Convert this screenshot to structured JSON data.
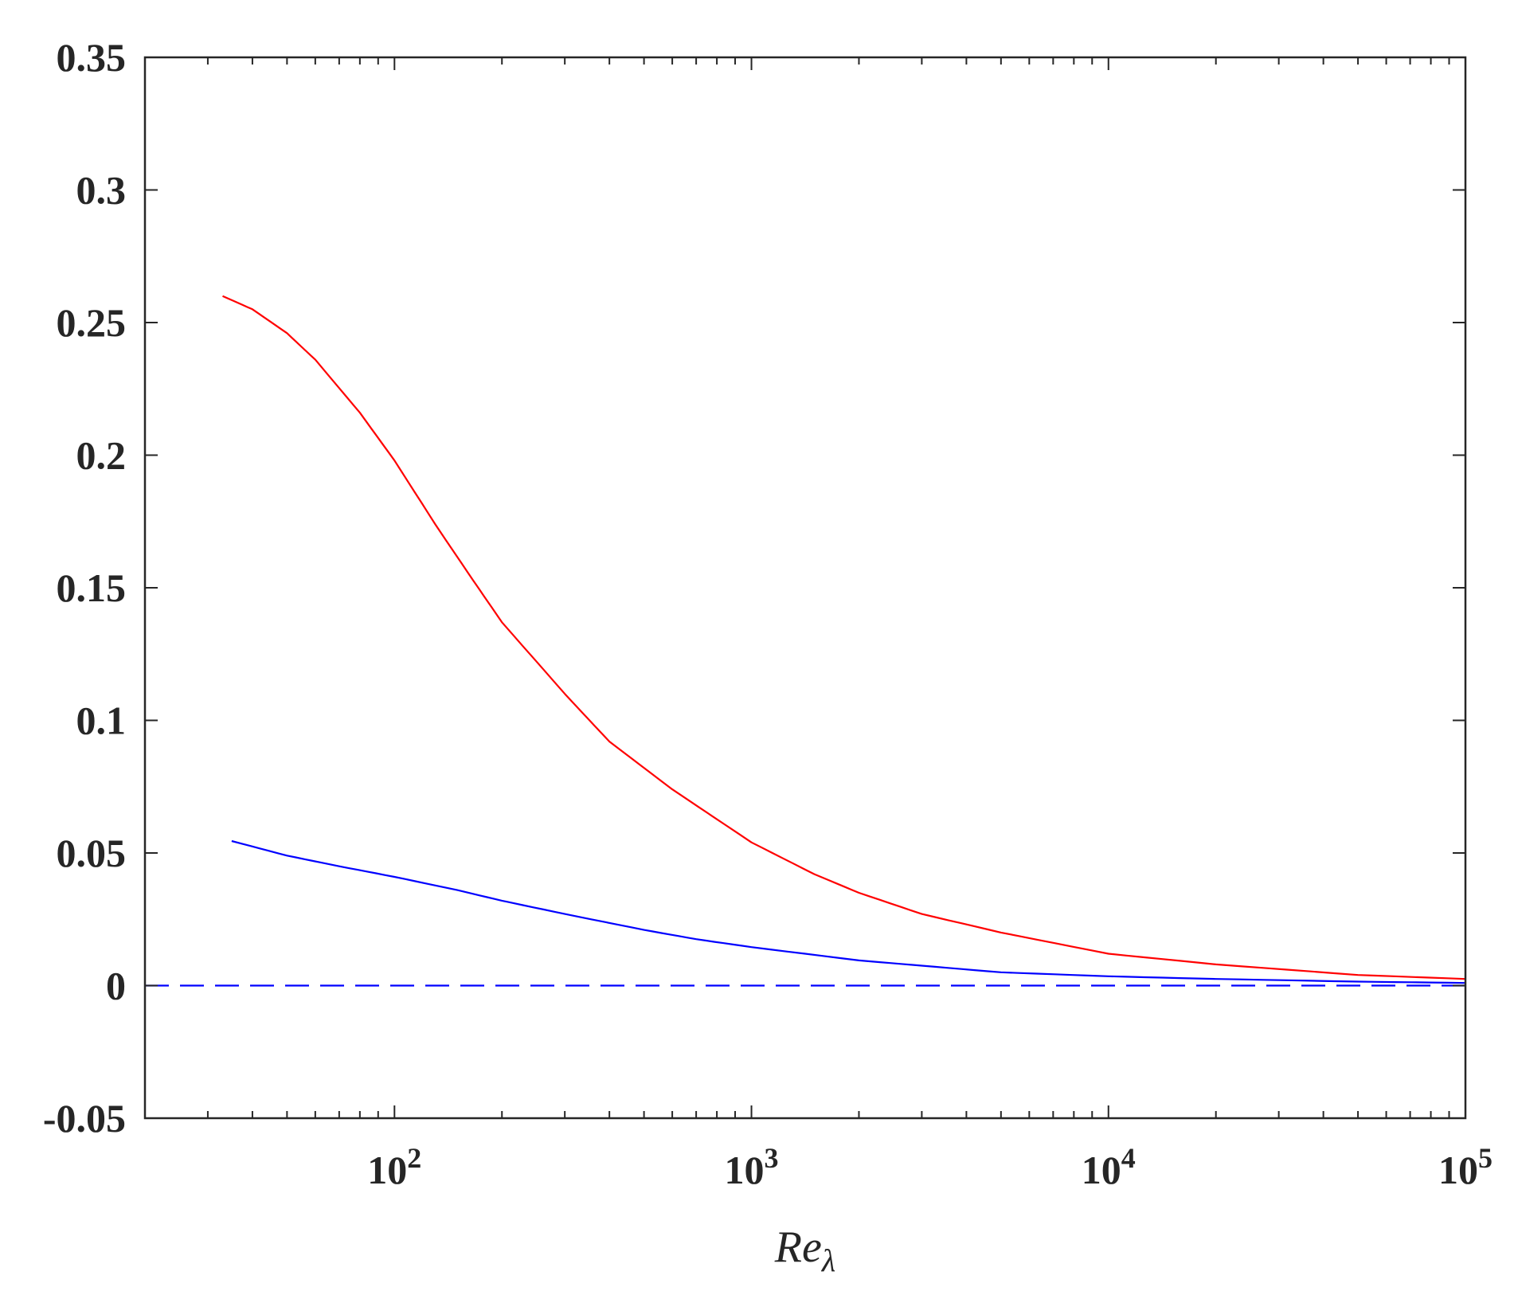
{
  "chart_data": {
    "type": "line",
    "title": "",
    "xlabel": "Re",
    "xlabel_subscript": "λ",
    "ylabel": "",
    "xscale": "log",
    "xlim": [
      20,
      100000
    ],
    "ylim": [
      -0.05,
      0.35
    ],
    "grid": false,
    "yticks": [
      {
        "value": -0.05,
        "label": "-0.05"
      },
      {
        "value": 0,
        "label": "0"
      },
      {
        "value": 0.05,
        "label": "0.05"
      },
      {
        "value": 0.1,
        "label": "0.1"
      },
      {
        "value": 0.15,
        "label": "0.15"
      },
      {
        "value": 0.2,
        "label": "0.2"
      },
      {
        "value": 0.25,
        "label": "0.25"
      },
      {
        "value": 0.3,
        "label": "0.3"
      },
      {
        "value": 0.35,
        "label": "0.35"
      }
    ],
    "xticks": [
      {
        "value": 100,
        "base": "10",
        "exp": "2"
      },
      {
        "value": 1000,
        "base": "10",
        "exp": "3"
      },
      {
        "value": 10000,
        "base": "10",
        "exp": "4"
      },
      {
        "value": 100000,
        "base": "10",
        "exp": "5"
      }
    ],
    "series": [
      {
        "color": "#ff0000",
        "style": "solid",
        "x": [
          33,
          40,
          50,
          60,
          80,
          100,
          130,
          160,
          200,
          300,
          400,
          600,
          1000,
          1500,
          2000,
          3000,
          5000,
          10000,
          20000,
          50000,
          100000
        ],
        "y": [
          0.26,
          0.255,
          0.246,
          0.236,
          0.216,
          0.198,
          0.174,
          0.156,
          0.137,
          0.11,
          0.092,
          0.074,
          0.054,
          0.042,
          0.035,
          0.027,
          0.02,
          0.012,
          0.008,
          0.004,
          0.0025
        ]
      },
      {
        "color": "#0000ff",
        "style": "solid",
        "x": [
          35,
          50,
          70,
          100,
          150,
          200,
          300,
          500,
          700,
          1000,
          2000,
          3000,
          5000,
          10000,
          20000,
          50000,
          100000
        ],
        "y": [
          0.0545,
          0.049,
          0.045,
          0.041,
          0.036,
          0.032,
          0.027,
          0.021,
          0.0175,
          0.0145,
          0.0095,
          0.0075,
          0.005,
          0.0035,
          0.0025,
          0.0015,
          0.001
        ]
      },
      {
        "color": "#0000ff",
        "style": "dashed",
        "x": [
          20,
          100000
        ],
        "y": [
          0,
          0
        ]
      }
    ]
  }
}
